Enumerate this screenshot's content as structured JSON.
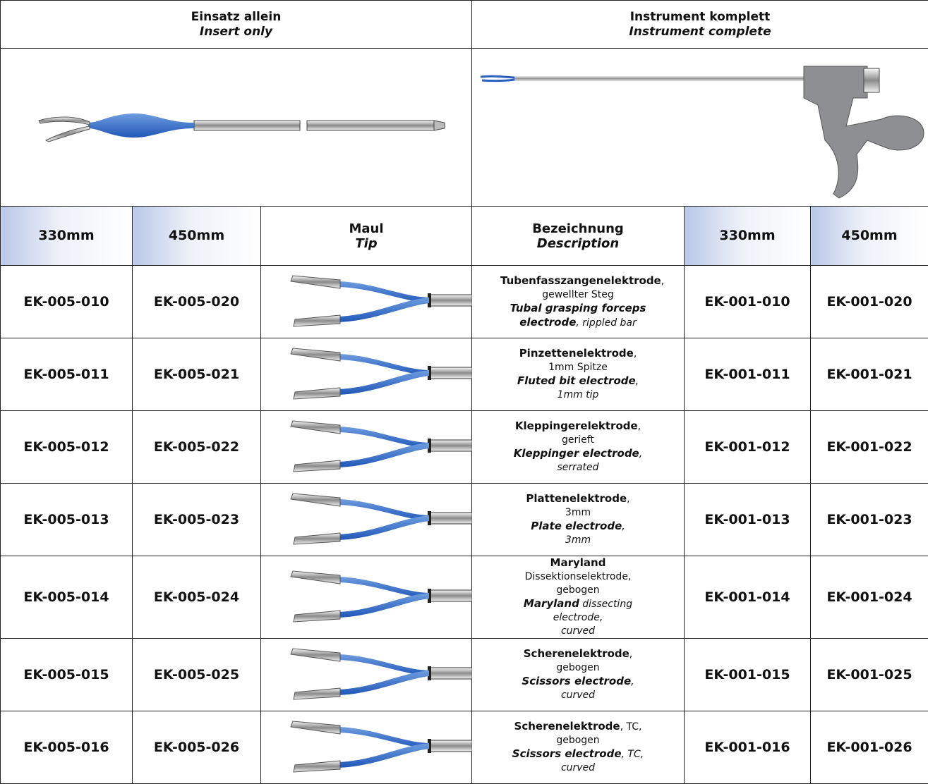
{
  "header": {
    "left": {
      "de": "Einsatz allein",
      "en": "Insert only"
    },
    "right": {
      "de": "Instrument komplett",
      "en": "Instrument complete"
    }
  },
  "columns": [
    "330mm",
    "450mm",
    {
      "de": "Maul",
      "en": "Tip"
    },
    {
      "de": "Bezeichnung",
      "en": "Description"
    },
    "330mm",
    "450mm"
  ],
  "rows": [
    {
      "insert_330": "EK-005-010",
      "insert_450": "EK-005-020",
      "de": {
        "name": "Tubenfasszangenelektrode",
        "rest": ",",
        "detail": "gewellter Steg"
      },
      "en": {
        "name": "Tubal grasping forceps electrode",
        "rest": ", rippled bar"
      },
      "complete_330": "EK-001-010",
      "complete_450": "EK-001-020"
    },
    {
      "insert_330": "EK-005-011",
      "insert_450": "EK-005-021",
      "de": {
        "name": "Pinzettenelektrode",
        "rest": ",",
        "detail": "1mm Spitze"
      },
      "en": {
        "name": "Fluted bit electrode",
        "rest": ",",
        "detail": "1mm tip"
      },
      "complete_330": "EK-001-011",
      "complete_450": "EK-001-021"
    },
    {
      "insert_330": "EK-005-012",
      "insert_450": "EK-005-022",
      "de": {
        "name": "Kleppingerelektrode",
        "rest": ",",
        "detail": "gerieft"
      },
      "en": {
        "name": "Kleppinger electrode",
        "rest": ",",
        "detail": "serrated"
      },
      "complete_330": "EK-001-012",
      "complete_450": "EK-001-022"
    },
    {
      "insert_330": "EK-005-013",
      "insert_450": "EK-005-023",
      "de": {
        "name": "Plattenelektrode",
        "rest": ",",
        "detail": "3mm"
      },
      "en": {
        "name": "Plate electrode",
        "rest": ",",
        "detail": "3mm"
      },
      "complete_330": "EK-001-013",
      "complete_450": "EK-001-023"
    },
    {
      "insert_330": "EK-005-014",
      "insert_450": "EK-005-024",
      "de": {
        "name": "Maryland",
        "rest": " Dissektionselektrode,",
        "detail": "gebogen"
      },
      "en": {
        "name": "Maryland",
        "rest": " dissecting electrode,",
        "detail": "curved"
      },
      "complete_330": "EK-001-014",
      "complete_450": "EK-001-024"
    },
    {
      "insert_330": "EK-005-015",
      "insert_450": "EK-005-025",
      "de": {
        "name": "Scherenelektrode",
        "rest": ",",
        "detail": "gebogen"
      },
      "en": {
        "name": "Scissors electrode",
        "rest": ",",
        "detail": "curved"
      },
      "complete_330": "EK-001-015",
      "complete_450": "EK-001-025"
    },
    {
      "insert_330": "EK-005-016",
      "insert_450": "EK-005-026",
      "de": {
        "name": "Scherenelektrode",
        "rest": ", TC,",
        "detail": "gebogen"
      },
      "en": {
        "name": "Scissors electrode",
        "rest": ", TC,",
        "detail": "curved"
      },
      "complete_330": "EK-001-016",
      "complete_450": "EK-001-026"
    }
  ]
}
